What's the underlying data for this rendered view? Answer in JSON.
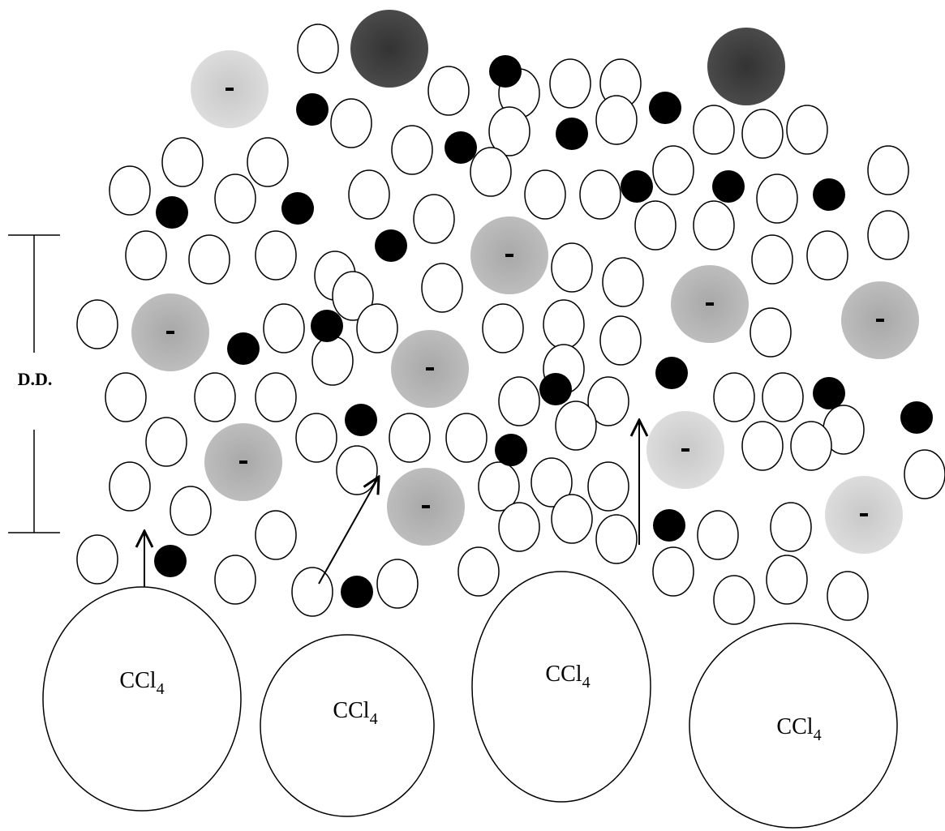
{
  "scale_label": "D.D.",
  "molecules": [
    {
      "formula": "CCl",
      "subscript": "4"
    },
    {
      "formula": "CCl",
      "subscript": "4"
    },
    {
      "formula": "CCl",
      "subscript": "4"
    },
    {
      "formula": "CCl",
      "subscript": "4"
    }
  ]
}
